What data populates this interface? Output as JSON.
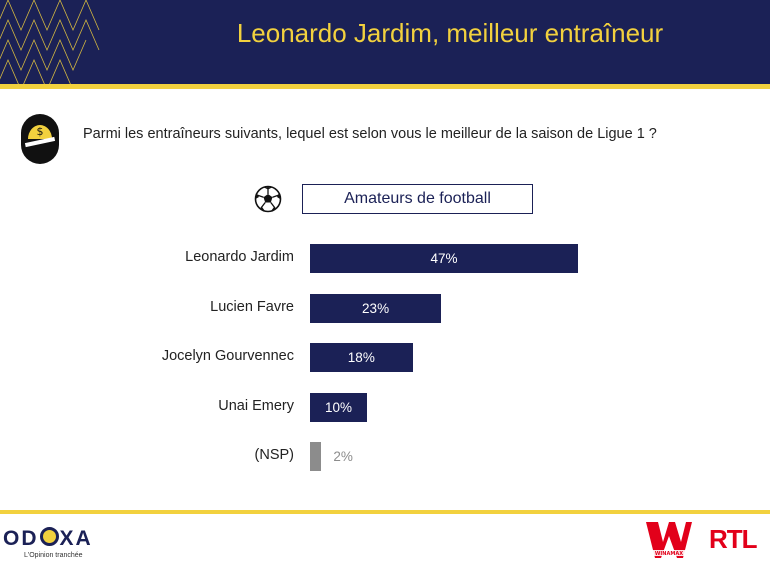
{
  "header": {
    "title": "Leonardo Jardim, meilleur entraîneur"
  },
  "question": "Parmi les entraîneurs suivants, lequel est selon vous le meilleur de la saison de Ligue 1 ?",
  "segment_label": "Amateurs de football",
  "colors": {
    "navy": "#1b2156",
    "yellow": "#f2d13e",
    "grey": "#8c8c8c",
    "rtl_red": "#e2001a"
  },
  "icons": [
    "coin-icon",
    "soccer-ball-icon"
  ],
  "footer": {
    "brand": "ODOXA",
    "tagline": "L'Opinion tranchée",
    "logos": [
      "WINAMAX",
      "RTL"
    ]
  },
  "chart_data": {
    "type": "bar",
    "orientation": "horizontal",
    "categories": [
      "Leonardo Jardim",
      "Lucien Favre",
      "Jocelyn Gourvennec",
      "Unai Emery",
      "(NSP)"
    ],
    "values": [
      47,
      23,
      18,
      10,
      2
    ],
    "value_labels": [
      "47%",
      "23%",
      "18%",
      "10%",
      "2%"
    ],
    "unit": "%",
    "colors": [
      "#1b2156",
      "#1b2156",
      "#1b2156",
      "#1b2156",
      "#8c8c8c"
    ],
    "title": "Amateurs de football"
  }
}
